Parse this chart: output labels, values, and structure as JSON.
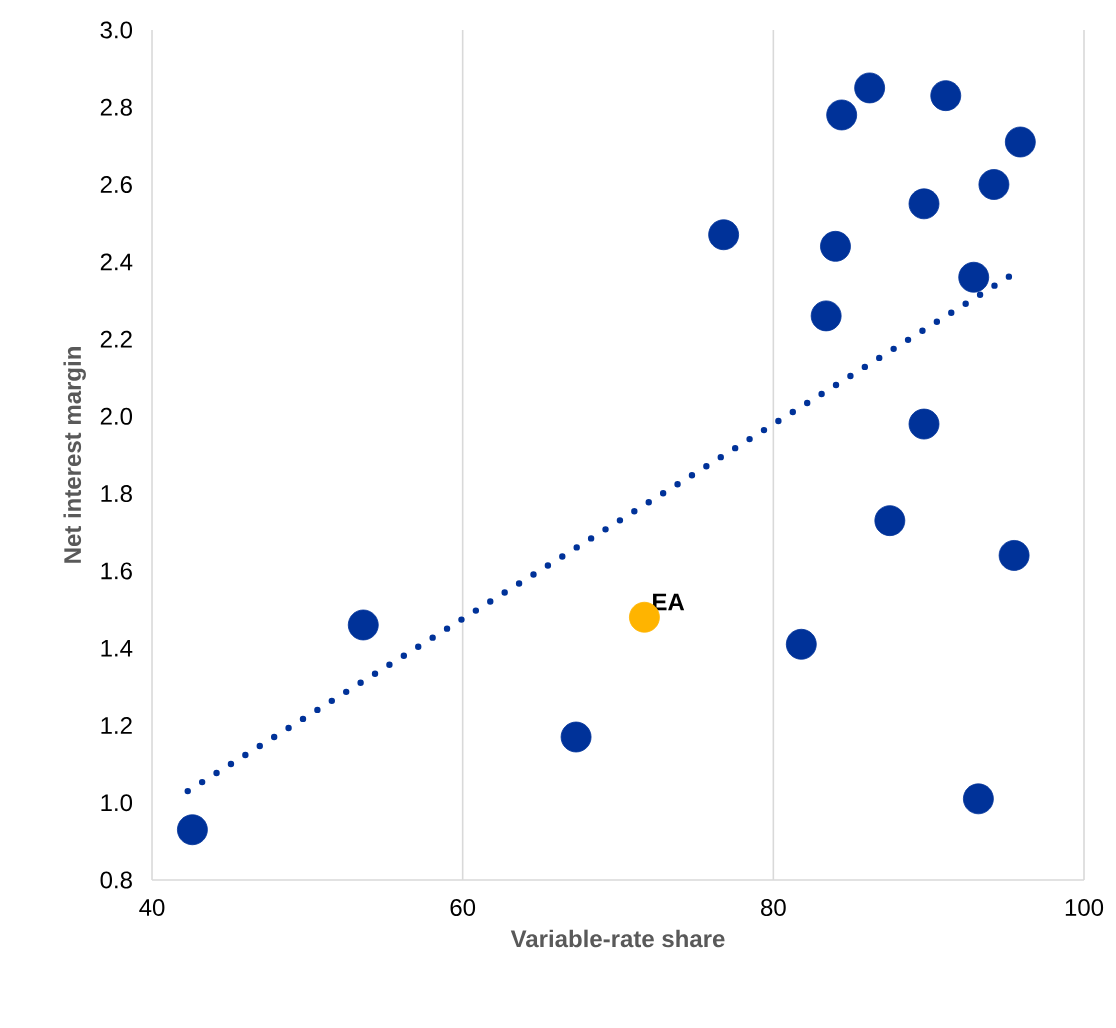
{
  "chart_data": {
    "type": "scatter",
    "xlabel": "Variable-rate  share",
    "ylabel": "Net interest margin",
    "xlim": [
      40,
      100
    ],
    "ylim": [
      0.8,
      3.0
    ],
    "xticks": [
      40,
      60,
      80,
      100
    ],
    "yticks": [
      {
        "value": 0.8,
        "label": "0.8"
      },
      {
        "value": 1.0,
        "label": "1.0"
      },
      {
        "value": 1.2,
        "label": "1.2"
      },
      {
        "value": 1.4,
        "label": "1.4"
      },
      {
        "value": 1.6,
        "label": "1.6"
      },
      {
        "value": 1.8,
        "label": "1.8"
      },
      {
        "value": 2.0,
        "label": "2.0"
      },
      {
        "value": 2.2,
        "label": "2.2"
      },
      {
        "value": 2.4,
        "label": "2.4"
      },
      {
        "value": 2.6,
        "label": "2.6"
      },
      {
        "value": 2.8,
        "label": "2.8"
      },
      {
        "value": 3.0,
        "label": "3.0"
      }
    ],
    "grid": "x",
    "marker": "circle",
    "series": [
      {
        "color": "#003299",
        "x": [
          42.6,
          53.6,
          67.3,
          76.8,
          81.8,
          83.4,
          84.0,
          84.4,
          86.2,
          87.5,
          89.7,
          89.7,
          91.1,
          92.9,
          93.2,
          94.2,
          95.5,
          95.9
        ],
        "values": [
          0.93,
          1.46,
          1.17,
          2.47,
          1.41,
          2.26,
          2.44,
          2.78,
          2.85,
          1.73,
          2.55,
          1.98,
          2.83,
          2.36,
          1.01,
          2.6,
          1.64,
          2.71
        ]
      },
      {
        "name": "EA",
        "color": "#ffb400",
        "x": [
          71.7
        ],
        "values": [
          1.48
        ]
      },
      {
        "type": "line",
        "color": "#003299",
        "line_style": "dotted",
        "marker": "none",
        "x": [
          42.3,
          95.5
        ],
        "values": [
          1.03,
          2.37
        ]
      }
    ]
  }
}
